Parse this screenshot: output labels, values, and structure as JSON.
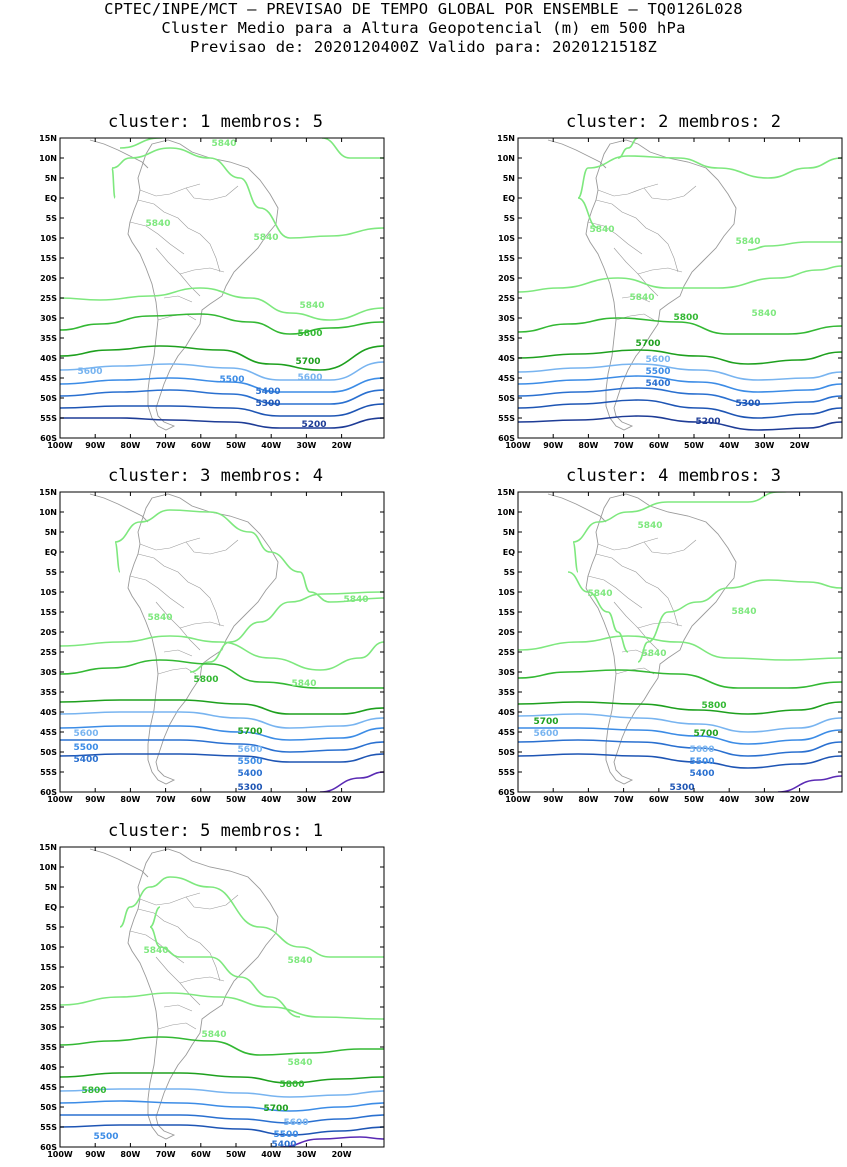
{
  "header": {
    "line1": "CPTEC/INPE/MCT – PREVISAO DE TEMPO GLOBAL POR ENSEMBLE – TQ0126L028",
    "line2": "Cluster Medio para a Altura Geopotencial (m) em 500 hPa",
    "line3": "Previsao de: 2020120400Z    Valido para: 2020121518Z"
  },
  "axes": {
    "lat_ticks": [
      "15N",
      "10N",
      "5N",
      "EQ",
      "5S",
      "10S",
      "15S",
      "20S",
      "25S",
      "30S",
      "35S",
      "40S",
      "45S",
      "50S",
      "55S",
      "60S"
    ],
    "lon_ticks": [
      "100W",
      "90W",
      "80W",
      "70W",
      "60W",
      "50W",
      "40W",
      "30W",
      "20W"
    ]
  },
  "colors": {
    "c5840": "#7ee87e",
    "c5800": "#33b833",
    "c5700": "#1ea01e",
    "c5600": "#78b4f0",
    "c5500": "#3c8ce6",
    "c5400": "#2a70d0",
    "c5300": "#1e55b4",
    "c5200": "#1e3c96",
    "c5100": "#5a2ab4",
    "land": "#9a9a9a"
  },
  "panels": [
    {
      "title": "cluster: 1   membros: 5",
      "labels": [
        "5840",
        "5840",
        "5840",
        "5840",
        "5800",
        "5700",
        "5600",
        "5600",
        "5500",
        "5400",
        "5300",
        "5200"
      ]
    },
    {
      "title": "cluster: 2   membros: 2",
      "labels": [
        "5840",
        "5840",
        "5840",
        "5840",
        "5800",
        "5700",
        "5600",
        "5500",
        "5400",
        "5300",
        "5200"
      ]
    },
    {
      "title": "cluster: 3   membros: 4",
      "labels": [
        "5840",
        "5840",
        "5840",
        "5800",
        "5700",
        "5600",
        "5600",
        "5500",
        "5500",
        "5400",
        "5400",
        "5300"
      ]
    },
    {
      "title": "cluster: 4   membros: 3",
      "labels": [
        "5840",
        "5840",
        "5840",
        "5840",
        "5800",
        "5700",
        "5700",
        "5600",
        "5600",
        "5500",
        "5400",
        "5300"
      ]
    },
    {
      "title": "cluster: 5   membros: 1",
      "labels": [
        "5840",
        "5840",
        "5840",
        "5840",
        "5800",
        "5800",
        "5700",
        "5600",
        "5500",
        "5500",
        "5400",
        "5300"
      ]
    }
  ]
}
